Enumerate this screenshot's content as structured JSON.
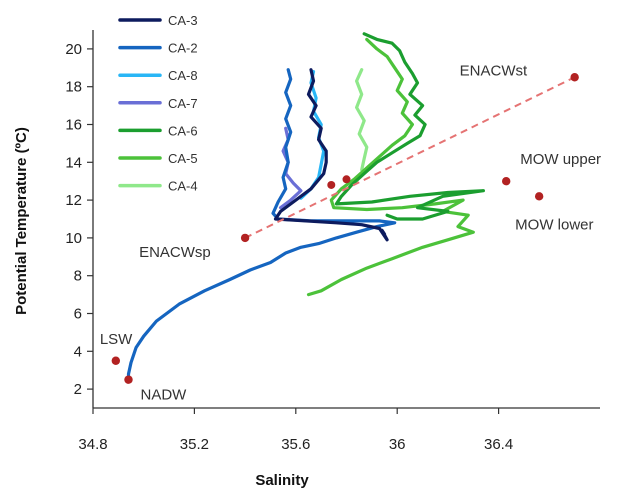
{
  "chart_data": {
    "type": "line",
    "xlabel": "Salinity",
    "ylabel": "Potential Temperature (ºC)",
    "xlim": [
      34.8,
      36.8
    ],
    "ylim": [
      1,
      21
    ],
    "x_ticks": [
      34.8,
      35.2,
      35.6,
      36,
      36.4
    ],
    "x_tick_labels": [
      "34.8",
      "35.2",
      "35.6",
      "36",
      "36.4"
    ],
    "y_ticks": [
      2,
      4,
      6,
      8,
      10,
      12,
      14,
      16,
      18,
      20
    ],
    "y_tick_labels": [
      "2",
      "4",
      "6",
      "8",
      "10",
      "12",
      "14",
      "16",
      "18",
      "20"
    ],
    "grid": false,
    "legend_position": "top-left",
    "series": [
      {
        "name": "CA-3",
        "color": "#0d1b5e",
        "points": [
          [
            35.66,
            18.9
          ],
          [
            35.67,
            18.3
          ],
          [
            35.65,
            17.6
          ],
          [
            35.68,
            17.0
          ],
          [
            35.66,
            16.4
          ],
          [
            35.7,
            15.8
          ],
          [
            35.69,
            15.2
          ],
          [
            35.72,
            14.6
          ],
          [
            35.72,
            14.0
          ],
          [
            35.71,
            13.4
          ],
          [
            35.66,
            12.6
          ],
          [
            35.6,
            12.0
          ],
          [
            35.54,
            11.4
          ],
          [
            35.52,
            11.0
          ],
          [
            35.64,
            10.9
          ],
          [
            35.76,
            10.8
          ],
          [
            35.86,
            10.7
          ],
          [
            35.93,
            10.5
          ],
          [
            35.95,
            10.1
          ],
          [
            35.96,
            9.9
          ],
          [
            35.94,
            10.4
          ],
          [
            35.95,
            10.2
          ]
        ]
      },
      {
        "name": "CA-2",
        "color": "#1565c0",
        "points": [
          [
            35.57,
            18.9
          ],
          [
            35.58,
            18.4
          ],
          [
            35.56,
            17.7
          ],
          [
            35.58,
            17.0
          ],
          [
            35.56,
            16.3
          ],
          [
            35.58,
            15.6
          ],
          [
            35.56,
            14.8
          ],
          [
            35.57,
            14.0
          ],
          [
            35.55,
            13.2
          ],
          [
            35.56,
            12.6
          ],
          [
            35.53,
            11.9
          ],
          [
            35.51,
            11.3
          ],
          [
            35.53,
            11.0
          ],
          [
            35.66,
            10.9
          ],
          [
            35.8,
            10.9
          ],
          [
            35.93,
            10.9
          ],
          [
            35.99,
            10.8
          ],
          [
            35.92,
            10.6
          ],
          [
            35.84,
            10.3
          ],
          [
            35.76,
            10.0
          ],
          [
            35.69,
            9.7
          ],
          [
            35.62,
            9.5
          ],
          [
            35.56,
            9.2
          ],
          [
            35.5,
            8.7
          ],
          [
            35.42,
            8.3
          ],
          [
            35.34,
            7.8
          ],
          [
            35.24,
            7.2
          ],
          [
            35.14,
            6.5
          ],
          [
            35.05,
            5.6
          ],
          [
            35.0,
            4.8
          ],
          [
            34.97,
            4.2
          ],
          [
            34.95,
            3.4
          ],
          [
            34.94,
            2.8
          ],
          [
            34.94,
            2.5
          ]
        ]
      },
      {
        "name": "CA-8",
        "color": "#29b6f6",
        "points": [
          [
            35.67,
            18.8
          ],
          [
            35.66,
            18.2
          ],
          [
            35.68,
            17.4
          ],
          [
            35.67,
            16.7
          ],
          [
            35.7,
            16.0
          ],
          [
            35.69,
            15.3
          ],
          [
            35.71,
            14.6
          ],
          [
            35.7,
            13.9
          ],
          [
            35.69,
            13.2
          ],
          [
            35.66,
            12.6
          ],
          [
            35.62,
            12.1
          ]
        ]
      },
      {
        "name": "CA-7",
        "color": "#6a6fd6",
        "points": [
          [
            35.56,
            15.8
          ],
          [
            35.57,
            15.2
          ],
          [
            35.55,
            14.6
          ],
          [
            35.57,
            14.0
          ],
          [
            35.56,
            13.4
          ],
          [
            35.59,
            12.9
          ],
          [
            35.62,
            12.5
          ],
          [
            35.58,
            12.0
          ],
          [
            35.54,
            11.6
          ]
        ]
      },
      {
        "name": "CA-6",
        "color": "#1b9e2f",
        "points": [
          [
            35.87,
            20.8
          ],
          [
            35.92,
            20.5
          ],
          [
            35.98,
            20.3
          ],
          [
            36.01,
            19.9
          ],
          [
            36.03,
            19.3
          ],
          [
            36.06,
            18.7
          ],
          [
            36.08,
            18.2
          ],
          [
            36.05,
            17.6
          ],
          [
            36.1,
            17.0
          ],
          [
            36.07,
            16.5
          ],
          [
            36.11,
            16.0
          ],
          [
            36.09,
            15.4
          ],
          [
            36.04,
            15.0
          ],
          [
            35.98,
            14.5
          ],
          [
            35.92,
            14.0
          ],
          [
            35.87,
            13.4
          ],
          [
            35.82,
            12.8
          ],
          [
            35.78,
            12.2
          ],
          [
            35.76,
            11.8
          ],
          [
            35.9,
            11.9
          ],
          [
            36.05,
            12.2
          ],
          [
            36.2,
            12.4
          ],
          [
            36.34,
            12.5
          ],
          [
            36.18,
            12.2
          ],
          [
            36.08,
            11.6
          ],
          [
            36.2,
            11.4
          ],
          [
            36.1,
            11.0
          ],
          [
            36.0,
            11.0
          ],
          [
            35.96,
            11.2
          ]
        ]
      },
      {
        "name": "CA-5",
        "color": "#4cc23a",
        "points": [
          [
            35.88,
            20.5
          ],
          [
            35.92,
            20.0
          ],
          [
            35.96,
            19.6
          ],
          [
            35.99,
            19.0
          ],
          [
            36.02,
            18.4
          ],
          [
            36.0,
            17.8
          ],
          [
            36.04,
            17.2
          ],
          [
            36.02,
            16.6
          ],
          [
            36.06,
            16.0
          ],
          [
            36.03,
            15.4
          ],
          [
            35.98,
            14.9
          ],
          [
            35.93,
            14.3
          ],
          [
            35.88,
            13.7
          ],
          [
            35.83,
            13.1
          ],
          [
            35.78,
            12.6
          ],
          [
            35.74,
            12.0
          ],
          [
            35.75,
            11.6
          ],
          [
            35.88,
            11.5
          ],
          [
            36.02,
            11.6
          ],
          [
            36.15,
            11.8
          ],
          [
            36.26,
            12.0
          ],
          [
            36.18,
            11.4
          ],
          [
            36.28,
            11.2
          ],
          [
            36.24,
            10.6
          ],
          [
            36.3,
            10.3
          ],
          [
            36.2,
            9.9
          ],
          [
            36.1,
            9.5
          ],
          [
            35.98,
            8.9
          ],
          [
            35.88,
            8.4
          ],
          [
            35.78,
            7.8
          ],
          [
            35.7,
            7.2
          ],
          [
            35.65,
            7.0
          ]
        ]
      },
      {
        "name": "CA-4",
        "color": "#8fe88a",
        "points": [
          [
            35.86,
            18.9
          ],
          [
            35.84,
            18.3
          ],
          [
            35.86,
            17.6
          ],
          [
            35.84,
            16.9
          ],
          [
            35.87,
            16.2
          ],
          [
            35.85,
            15.5
          ],
          [
            35.88,
            14.8
          ],
          [
            35.87,
            14.2
          ],
          [
            35.86,
            13.6
          ]
        ]
      }
    ],
    "dashed_line": {
      "color": "#e57373",
      "from": [
        35.4,
        10.0
      ],
      "to": [
        36.7,
        18.5
      ]
    },
    "water_masses": [
      {
        "label": "ENACWst",
        "x": 36.7,
        "y": 18.5
      },
      {
        "label": "MOW upper",
        "x": 36.43,
        "y": 13.0
      },
      {
        "label": "MOW lower",
        "x": 36.56,
        "y": 12.2
      },
      {
        "label": "ENACWsp",
        "x": 35.4,
        "y": 10.0
      },
      {
        "label": "LSW",
        "x": 34.89,
        "y": 3.5
      },
      {
        "label": "NADW",
        "x": 34.94,
        "y": 2.5
      }
    ],
    "extra_points": [
      [
        35.74,
        12.8
      ],
      [
        35.8,
        13.1
      ]
    ],
    "marker_color": "#b22222"
  }
}
